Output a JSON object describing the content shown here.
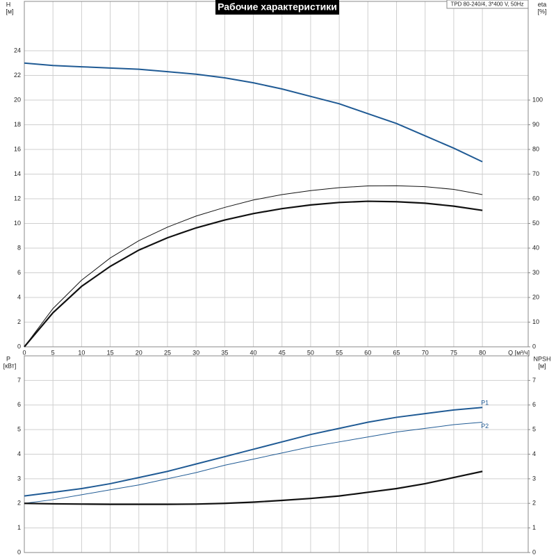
{
  "chart_data": [
    {
      "type": "line",
      "title": "Рабочие характеристики",
      "subtitle": "TPD 80-240/4, 3*400 V, 50Hz",
      "ylabel": "H",
      "yunit": "[м]",
      "y2label": "eta",
      "y2unit": "[%]",
      "xlabel": "Q [м³/ч]",
      "x": [
        0,
        5,
        10,
        15,
        20,
        25,
        30,
        35,
        40,
        45,
        50,
        55,
        60,
        65,
        70,
        75,
        80
      ],
      "xlim": [
        0,
        88
      ],
      "xticks": [
        0,
        5,
        10,
        15,
        20,
        25,
        30,
        35,
        40,
        45,
        50,
        55,
        60,
        65,
        70,
        75,
        80
      ],
      "ylim": [
        0,
        28
      ],
      "yticks": [
        0,
        2,
        4,
        6,
        8,
        10,
        12,
        14,
        16,
        18,
        20,
        22,
        24
      ],
      "y2lim": [
        0,
        140
      ],
      "y2ticks": [
        0,
        10,
        20,
        30,
        40,
        50,
        60,
        70,
        80,
        90,
        100
      ],
      "grid": true,
      "series": [
        {
          "color": "#1f5a94",
          "line_width": 2,
          "values": [
            23,
            22.8,
            22.7,
            22.6,
            22.5,
            22.3,
            22.1,
            21.8,
            21.4,
            20.9,
            20.3,
            19.7,
            18.9,
            18.1,
            17.1,
            16.1,
            15.0
          ]
        },
        {
          "color": "#111111",
          "line_width": 1,
          "axis": "y2",
          "values": [
            0,
            15.5,
            27,
            36,
            43,
            48.5,
            53,
            56.5,
            59.5,
            61.7,
            63.3,
            64.5,
            65.2,
            65.3,
            64.9,
            63.8,
            61.7
          ]
        },
        {
          "color": "#111111",
          "line_width": 2.2,
          "axis": "y2",
          "values": [
            0,
            13.8,
            24.5,
            32.6,
            39.2,
            44.2,
            48.2,
            51.4,
            54,
            56,
            57.5,
            58.5,
            59,
            58.8,
            58.2,
            57,
            55.3
          ]
        }
      ]
    },
    {
      "type": "line",
      "ylabel": "P",
      "yunit": "[кВт]",
      "y2label": "NPSH",
      "y2unit": "[м]",
      "x": [
        0,
        5,
        10,
        15,
        20,
        25,
        30,
        35,
        40,
        45,
        50,
        55,
        60,
        65,
        70,
        75,
        80
      ],
      "xlim": [
        0,
        88
      ],
      "xticks": [
        0,
        5,
        10,
        15,
        20,
        25,
        30,
        35,
        40,
        45,
        50,
        55,
        60,
        65,
        70,
        75,
        80
      ],
      "ylim": [
        0,
        8
      ],
      "yticks": [
        0,
        1,
        2,
        3,
        4,
        5,
        6,
        7
      ],
      "y2lim": [
        0,
        8
      ],
      "y2ticks": [
        0,
        1,
        2,
        3,
        4,
        5,
        6,
        7
      ],
      "grid": true,
      "series": [
        {
          "name": "P1",
          "color": "#1f5a94",
          "line_width": 2,
          "values": [
            2.3,
            2.45,
            2.6,
            2.8,
            3.05,
            3.3,
            3.6,
            3.9,
            4.2,
            4.5,
            4.8,
            5.05,
            5.3,
            5.5,
            5.65,
            5.8,
            5.9
          ]
        },
        {
          "name": "P2",
          "color": "#1f5a94",
          "line_width": 1,
          "values": [
            2.0,
            2.15,
            2.35,
            2.55,
            2.75,
            3.0,
            3.25,
            3.55,
            3.8,
            4.05,
            4.3,
            4.5,
            4.7,
            4.9,
            5.05,
            5.2,
            5.3
          ]
        },
        {
          "color": "#111111",
          "line_width": 2.2,
          "axis": "y2",
          "values": [
            2.0,
            1.98,
            1.97,
            1.96,
            1.96,
            1.96,
            1.97,
            2.0,
            2.05,
            2.12,
            2.2,
            2.3,
            2.45,
            2.6,
            2.8,
            3.05,
            3.3
          ]
        }
      ]
    }
  ]
}
